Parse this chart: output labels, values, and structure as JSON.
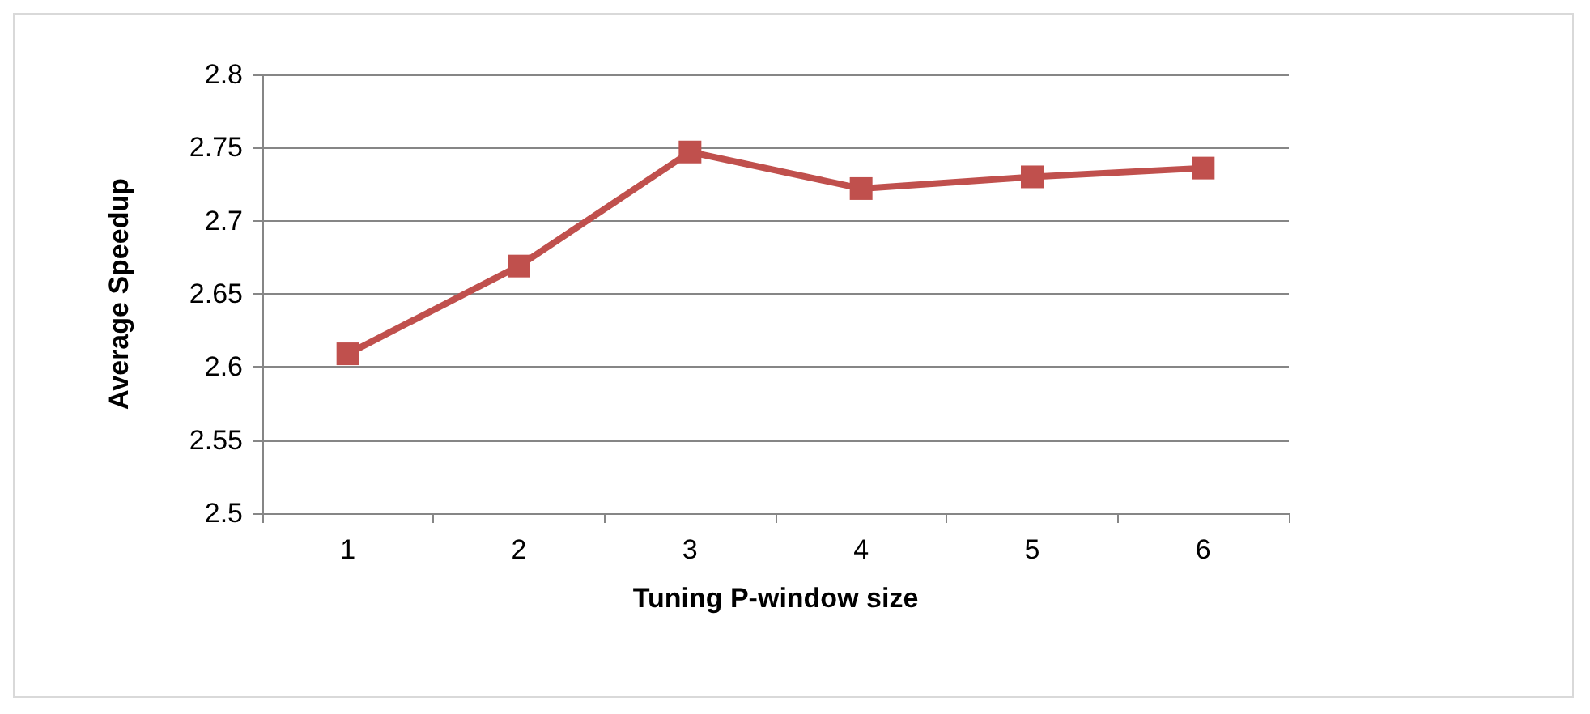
{
  "chart_data": {
    "type": "line",
    "xlabel": "Tuning P-window size",
    "ylabel": "Average Speedup",
    "categories": [
      "1",
      "2",
      "3",
      "4",
      "5",
      "6"
    ],
    "series": [
      {
        "color": "#c0504d",
        "values": [
          2.609,
          2.669,
          2.747,
          2.722,
          2.73,
          2.736
        ]
      }
    ],
    "ylim": [
      2.5,
      2.8
    ],
    "yticks": [
      2.5,
      2.55,
      2.6,
      2.65,
      2.7,
      2.75,
      2.8
    ],
    "grid": "y",
    "marker": "square",
    "line_style": "solid"
  }
}
